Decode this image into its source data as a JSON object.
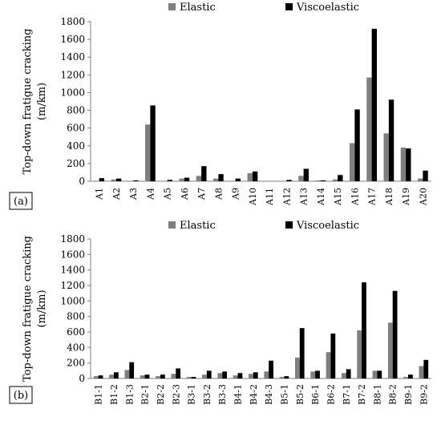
{
  "colors": {
    "elastic": "#7f7f7f",
    "viscoelastic": "#000000",
    "axis": "#808080"
  },
  "chart_data": [
    {
      "type": "bar",
      "panel_label": "(a)",
      "ylabel_line1": "Top-down fratigue cracking",
      "ylabel_line2": "(m/km)",
      "ylim": [
        0,
        1800
      ],
      "yticks": [
        0,
        200,
        400,
        600,
        800,
        1000,
        1200,
        1400,
        1600,
        1800
      ],
      "legend_position": "top-right",
      "grid": false,
      "categories": [
        "A1",
        "A2",
        "A3",
        "A4",
        "A5",
        "A6",
        "A7",
        "A8",
        "A9",
        "A10",
        "A11",
        "A12",
        "A13",
        "A14",
        "A15",
        "A16",
        "A17",
        "A18",
        "A19",
        "A20"
      ],
      "series": [
        {
          "name": "Elastic",
          "color": "#7f7f7f",
          "values": [
            5,
            20,
            5,
            640,
            5,
            30,
            60,
            30,
            5,
            90,
            0,
            5,
            60,
            10,
            20,
            430,
            1170,
            540,
            380,
            30
          ]
        },
        {
          "name": "Viscoelastic",
          "color": "#000000",
          "values": [
            35,
            30,
            10,
            855,
            15,
            40,
            170,
            80,
            30,
            110,
            0,
            15,
            140,
            10,
            70,
            810,
            1720,
            920,
            370,
            120
          ]
        }
      ]
    },
    {
      "type": "bar",
      "panel_label": "(b)",
      "ylabel_line1": "Top-down fratigue cracking",
      "ylabel_line2": "(m/km)",
      "ylim": [
        0,
        1800
      ],
      "yticks": [
        0,
        200,
        400,
        600,
        800,
        1000,
        1200,
        1400,
        1600,
        1800
      ],
      "legend_position": "top-right",
      "grid": false,
      "categories": [
        "B1-1",
        "B1-2",
        "B1-3",
        "B2-1",
        "B2-2",
        "B2-3",
        "B3-1",
        "B3-2",
        "B3-3",
        "B4-1",
        "B4-2",
        "B4-3",
        "B5-1",
        "B5-2",
        "B6-1",
        "B6-2",
        "B7-1",
        "B7-2",
        "B8-1",
        "B8-2",
        "B9-1",
        "B9-2"
      ],
      "series": [
        {
          "name": "Elastic",
          "color": "#7f7f7f",
          "values": [
            30,
            50,
            110,
            40,
            30,
            60,
            20,
            50,
            70,
            40,
            60,
            90,
            20,
            270,
            90,
            340,
            70,
            620,
            100,
            720,
            20,
            160
          ]
        },
        {
          "name": "Viscoelastic",
          "color": "#000000",
          "values": [
            40,
            80,
            210,
            50,
            50,
            130,
            20,
            100,
            90,
            70,
            80,
            230,
            30,
            650,
            100,
            580,
            120,
            1240,
            100,
            1130,
            50,
            240
          ]
        }
      ]
    }
  ]
}
